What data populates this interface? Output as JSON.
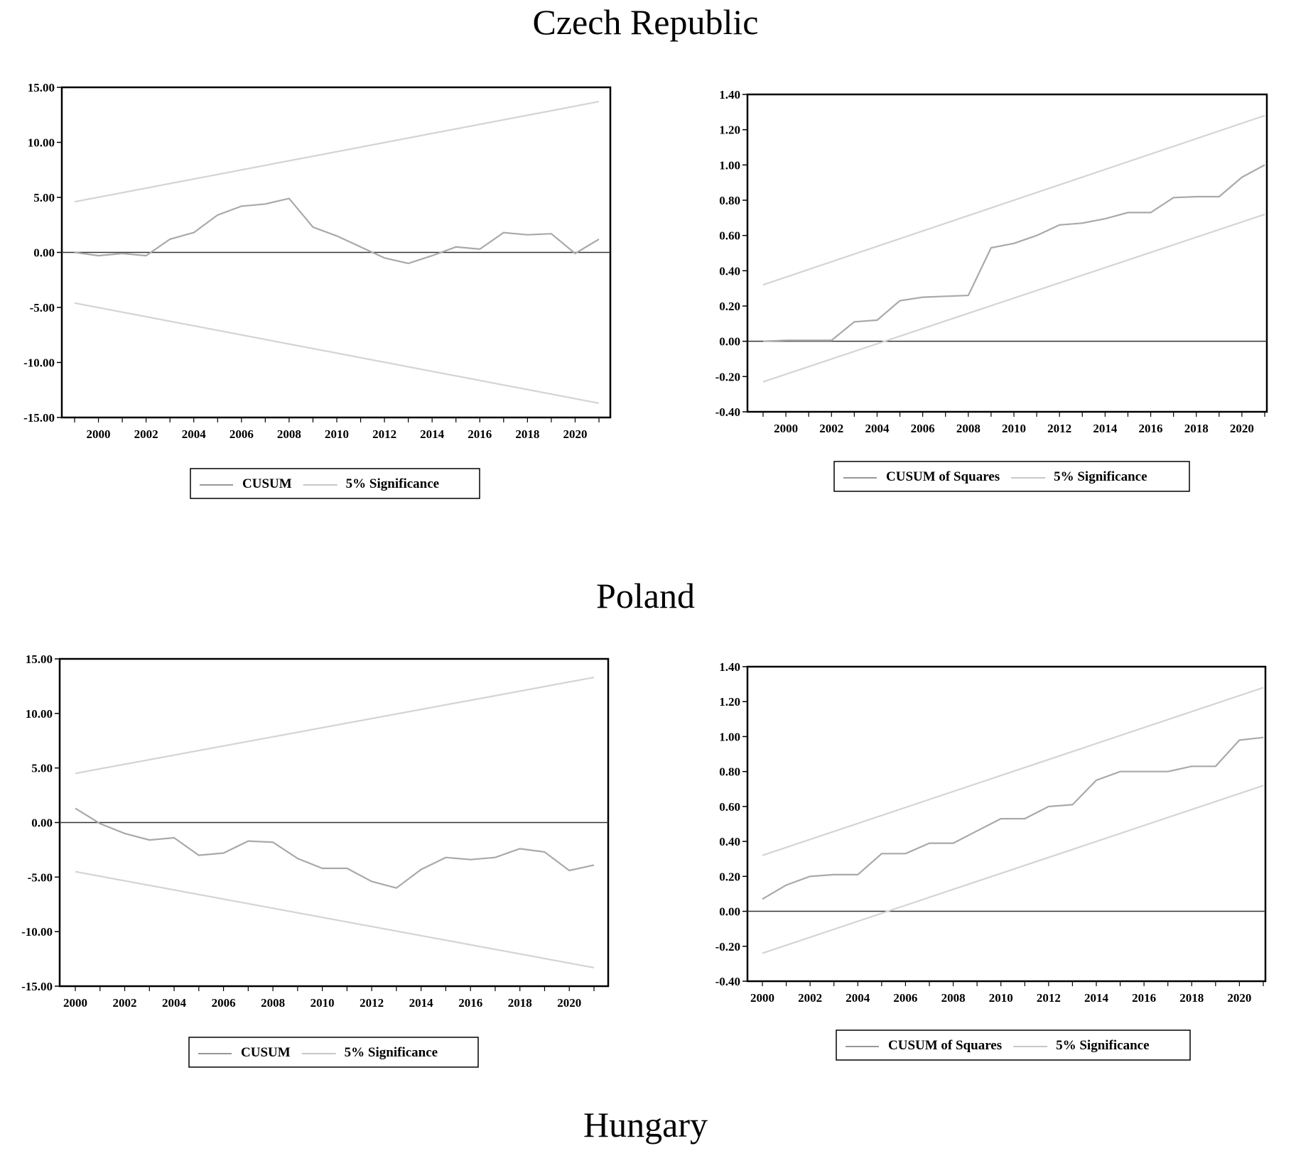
{
  "titles": {
    "czech": "Czech Republic",
    "poland": "Poland",
    "hungary": "Hungary"
  },
  "colors": {
    "series": "#a9a9a9",
    "band": "#d4d4d4",
    "axis": "#000000",
    "zero": "#333333"
  },
  "chart_data": [
    {
      "id": "cz-cusum",
      "type": "line",
      "title": "",
      "xlabel": "",
      "ylabel": "",
      "x_start": 1999,
      "x_end": 2021,
      "xticks": [
        "2000",
        "2002",
        "2004",
        "2006",
        "2008",
        "2010",
        "2012",
        "2014",
        "2016",
        "2018",
        "2020"
      ],
      "xtick_values": [
        2000,
        2002,
        2004,
        2006,
        2008,
        2010,
        2012,
        2014,
        2016,
        2018,
        2020
      ],
      "ylim": [
        -15,
        15
      ],
      "yticks": [
        "15.00",
        "10.00",
        "5.00",
        "0.00",
        "-5.00",
        "-10.00",
        "-15.00"
      ],
      "ytick_values": [
        15,
        10,
        5,
        0,
        -5,
        -10,
        -15
      ],
      "zero_line": 0,
      "legend": {
        "series": "CUSUM",
        "band": "5% Significance"
      },
      "series": {
        "name": "CUSUM",
        "x": [
          1999,
          2000,
          2001,
          2002,
          2003,
          2004,
          2005,
          2006,
          2007,
          2008,
          2009,
          2010,
          2011,
          2012,
          2013,
          2014,
          2015,
          2016,
          2017,
          2018,
          2019,
          2020,
          2021
        ],
        "values": [
          0,
          -0.3,
          -0.1,
          -0.3,
          1.2,
          1.8,
          3.4,
          4.2,
          4.4,
          4.9,
          2.3,
          1.5,
          0.5,
          -0.5,
          -1.0,
          -0.3,
          0.5,
          0.3,
          1.8,
          1.6,
          1.7,
          -0.1,
          1.2
        ]
      },
      "upper": {
        "x": [
          1999,
          2021
        ],
        "values": [
          4.6,
          13.7
        ]
      },
      "lower": {
        "x": [
          1999,
          2021
        ],
        "values": [
          -4.6,
          -13.7
        ]
      }
    },
    {
      "id": "cz-cusumsq",
      "type": "line",
      "title": "",
      "xlabel": "",
      "ylabel": "",
      "x_start": 1999,
      "x_end": 2021,
      "xticks": [
        "2000",
        "2002",
        "2004",
        "2006",
        "2008",
        "2010",
        "2012",
        "2014",
        "2016",
        "2018",
        "2020"
      ],
      "xtick_values": [
        2000,
        2002,
        2004,
        2006,
        2008,
        2010,
        2012,
        2014,
        2016,
        2018,
        2020
      ],
      "ylim": [
        -0.4,
        1.4
      ],
      "yticks": [
        "1.40",
        "1.20",
        "1.00",
        "0.80",
        "0.60",
        "0.40",
        "0.20",
        "0.00",
        "-0.20",
        "-0.40"
      ],
      "ytick_values": [
        1.4,
        1.2,
        1.0,
        0.8,
        0.6,
        0.4,
        0.2,
        0.0,
        -0.2,
        -0.4
      ],
      "zero_line": 0,
      "legend": {
        "series": "CUSUM of Squares",
        "band": "5% Significance"
      },
      "series": {
        "name": "CUSUM of Squares",
        "x": [
          1999,
          2000,
          2001,
          2002,
          2003,
          2004,
          2005,
          2006,
          2007,
          2008,
          2009,
          2010,
          2011,
          2012,
          2013,
          2014,
          2015,
          2016,
          2017,
          2018,
          2019,
          2020,
          2021
        ],
        "values": [
          0,
          0.005,
          0.005,
          0.005,
          0.11,
          0.12,
          0.23,
          0.25,
          0.255,
          0.26,
          0.53,
          0.555,
          0.6,
          0.66,
          0.67,
          0.695,
          0.73,
          0.73,
          0.815,
          0.82,
          0.82,
          0.93,
          1.0
        ]
      },
      "upper": {
        "x": [
          1999,
          2021
        ],
        "values": [
          0.32,
          1.28
        ]
      },
      "lower": {
        "x": [
          1999,
          2021
        ],
        "values": [
          -0.23,
          0.72
        ]
      }
    },
    {
      "id": "pl-cusum",
      "type": "line",
      "title": "",
      "xlabel": "",
      "ylabel": "",
      "x_start": 2000,
      "x_end": 2021,
      "xticks": [
        "2000",
        "2002",
        "2004",
        "2006",
        "2008",
        "2010",
        "2012",
        "2014",
        "2016",
        "2018",
        "2020"
      ],
      "xtick_values": [
        2000,
        2002,
        2004,
        2006,
        2008,
        2010,
        2012,
        2014,
        2016,
        2018,
        2020
      ],
      "ylim": [
        -15,
        15
      ],
      "yticks": [
        "15.00",
        "10.00",
        "5.00",
        "0.00",
        "-5.00",
        "-10.00",
        "-15.00"
      ],
      "ytick_values": [
        15,
        10,
        5,
        0,
        -5,
        -10,
        -15
      ],
      "zero_line": 0,
      "legend": {
        "series": "CUSUM",
        "band": "5% Significance"
      },
      "series": {
        "name": "CUSUM",
        "x": [
          2000,
          2001,
          2002,
          2003,
          2004,
          2005,
          2006,
          2007,
          2008,
          2009,
          2010,
          2011,
          2012,
          2013,
          2014,
          2015,
          2016,
          2017,
          2018,
          2019,
          2020,
          2021
        ],
        "values": [
          1.3,
          -0.1,
          -1.0,
          -1.6,
          -1.4,
          -3.0,
          -2.8,
          -1.7,
          -1.8,
          -3.3,
          -4.2,
          -4.2,
          -5.4,
          -6.0,
          -4.3,
          -3.2,
          -3.4,
          -3.2,
          -2.4,
          -2.7,
          -4.4,
          -3.9
        ]
      },
      "upper": {
        "x": [
          2000,
          2021
        ],
        "values": [
          4.5,
          13.3
        ]
      },
      "lower": {
        "x": [
          2000,
          2021
        ],
        "values": [
          -4.5,
          -13.3
        ]
      }
    },
    {
      "id": "pl-cusumsq",
      "type": "line",
      "title": "",
      "xlabel": "",
      "ylabel": "",
      "x_start": 2000,
      "x_end": 2021,
      "xticks": [
        "2000",
        "2002",
        "2004",
        "2006",
        "2008",
        "2010",
        "2012",
        "2014",
        "2016",
        "2018",
        "2020"
      ],
      "xtick_values": [
        2000,
        2002,
        2004,
        2006,
        2008,
        2010,
        2012,
        2014,
        2016,
        2018,
        2020
      ],
      "ylim": [
        -0.4,
        1.4
      ],
      "yticks": [
        "1.40",
        "1.20",
        "1.00",
        "0.80",
        "0.60",
        "0.40",
        "0.20",
        "0.00",
        "-0.20",
        "-0.40"
      ],
      "ytick_values": [
        1.4,
        1.2,
        1.0,
        0.8,
        0.6,
        0.4,
        0.2,
        0.0,
        -0.2,
        -0.4
      ],
      "zero_line": 0,
      "legend": {
        "series": "CUSUM of Squares",
        "band": "5% Significance"
      },
      "series": {
        "name": "CUSUM of Squares",
        "x": [
          2000,
          2001,
          2002,
          2003,
          2004,
          2005,
          2006,
          2007,
          2008,
          2009,
          2010,
          2011,
          2012,
          2013,
          2014,
          2015,
          2016,
          2017,
          2018,
          2019,
          2020,
          2021
        ],
        "values": [
          0.07,
          0.15,
          0.2,
          0.21,
          0.21,
          0.33,
          0.33,
          0.39,
          0.39,
          0.46,
          0.53,
          0.53,
          0.6,
          0.61,
          0.75,
          0.8,
          0.8,
          0.8,
          0.83,
          0.83,
          0.98,
          0.995
        ]
      },
      "upper": {
        "x": [
          2000,
          2021
        ],
        "values": [
          0.32,
          1.28
        ]
      },
      "lower": {
        "x": [
          2000,
          2021
        ],
        "values": [
          -0.24,
          0.72
        ]
      }
    }
  ]
}
